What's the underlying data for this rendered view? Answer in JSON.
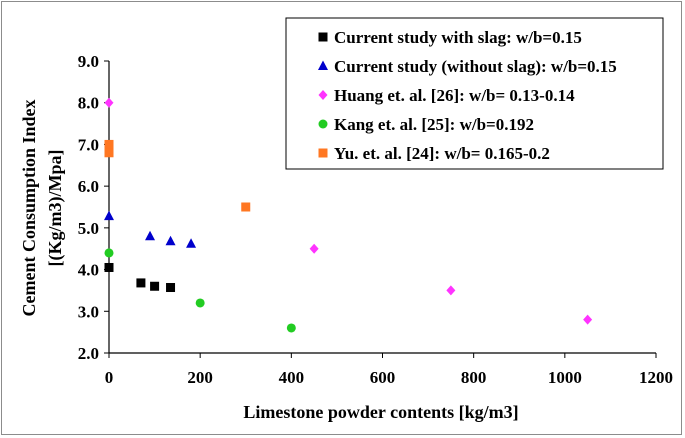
{
  "chart_data": {
    "type": "scatter",
    "xlabel": "Limestone powder contents [kg/m3]",
    "ylabel_line1": "Cement Consumption Index",
    "ylabel_line2": "[(Kg/m3)/Mpa]",
    "xlim": [
      0,
      1200
    ],
    "ylim": [
      2.0,
      9.0
    ],
    "xticks": [
      "0",
      "200",
      "400",
      "600",
      "800",
      "1000",
      "1200"
    ],
    "xtick_values": [
      0,
      200,
      400,
      600,
      800,
      1000,
      1200
    ],
    "yticks": [
      "2.0",
      "3.0",
      "4.0",
      "5.0",
      "6.0",
      "7.0",
      "8.0",
      "9.0"
    ],
    "ytick_values": [
      2,
      3,
      4,
      5,
      6,
      7,
      8,
      9
    ],
    "legend_position": "top-right",
    "series": [
      {
        "name": "Current study with slag: w/b=0.15",
        "marker": "square",
        "color": "#000000",
        "points": [
          [
            0,
            4.05
          ],
          [
            70,
            3.68
          ],
          [
            100,
            3.6
          ],
          [
            135,
            3.57
          ]
        ]
      },
      {
        "name": "Current study (without slag): w/b=0.15",
        "marker": "triangle",
        "color": "#0000cc",
        "points": [
          [
            0,
            5.28
          ],
          [
            90,
            4.8
          ],
          [
            135,
            4.68
          ],
          [
            180,
            4.62
          ]
        ]
      },
      {
        "name": "Huang et. al. [26]: w/b= 0.13-0.14",
        "marker": "diamond",
        "color": "#ff33ff",
        "points": [
          [
            0,
            8.0
          ],
          [
            450,
            4.5
          ],
          [
            750,
            3.5
          ],
          [
            1050,
            2.8
          ]
        ]
      },
      {
        "name": "Kang et. al. [25]: w/b=0.192",
        "marker": "circle",
        "color": "#22cc22",
        "points": [
          [
            0,
            4.4
          ],
          [
            200,
            3.2
          ],
          [
            400,
            2.6
          ]
        ]
      },
      {
        "name": "Yu. et. al. [24]: w/b= 0.165-0.2",
        "marker": "square",
        "color": "#ff7722",
        "points": [
          [
            0,
            7.0
          ],
          [
            0,
            6.8
          ],
          [
            300,
            5.5
          ]
        ]
      }
    ]
  }
}
